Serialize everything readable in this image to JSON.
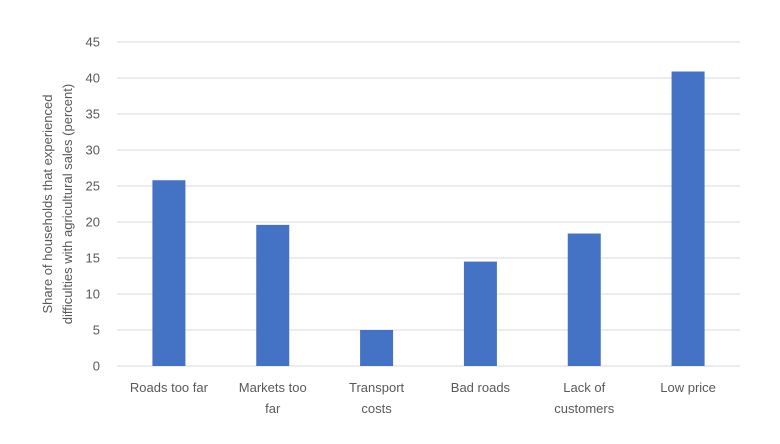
{
  "chart_data": {
    "type": "bar",
    "title": "",
    "xlabel": "",
    "ylabel_lines": [
      "Share of households that experienced",
      "difficulties with agricultural sales (percent)"
    ],
    "categories": [
      [
        "Roads too far"
      ],
      [
        "Markets too",
        "far"
      ],
      [
        "Transport",
        "costs"
      ],
      [
        "Bad roads"
      ],
      [
        "Lack of",
        "customers"
      ],
      [
        "Low price"
      ]
    ],
    "values": [
      25.8,
      19.6,
      5.0,
      14.5,
      18.4,
      40.9
    ],
    "ylim": [
      0,
      45
    ],
    "yticks": [
      0,
      5,
      10,
      15,
      20,
      25,
      30,
      35,
      40,
      45
    ],
    "grid": true,
    "bar_color": "#4472c4",
    "grid_color": "#d9d9d9",
    "text_color": "#595959"
  }
}
